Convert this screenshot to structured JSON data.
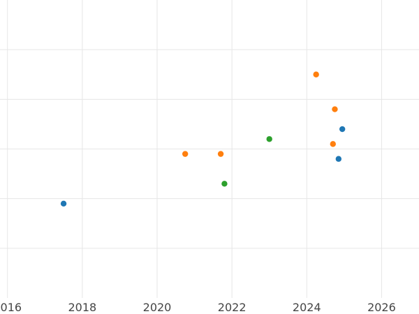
{
  "chart_data": {
    "type": "scatter",
    "title": "",
    "xlabel": "",
    "ylabel": "",
    "x_axis_kind": "year",
    "xlim": [
      2015.8,
      2027.0
    ],
    "ylim": [
      0,
      6
    ],
    "x_ticks": [
      2016,
      2018,
      2020,
      2022,
      2024,
      2026
    ],
    "x_tick_labels": [
      "2016",
      "2018",
      "2020",
      "2022",
      "2024",
      "2026"
    ],
    "y_gridlines": [
      1,
      2,
      3,
      4,
      5
    ],
    "grid": true,
    "legend": "none",
    "series": [
      {
        "color": "#1f77b4",
        "points": [
          {
            "x": 2017.5,
            "y": 1.9
          },
          {
            "x": 2024.85,
            "y": 2.8
          },
          {
            "x": 2024.95,
            "y": 3.4
          }
        ]
      },
      {
        "color": "#ff7f0e",
        "points": [
          {
            "x": 2020.75,
            "y": 2.9
          },
          {
            "x": 2021.7,
            "y": 2.9
          },
          {
            "x": 2024.25,
            "y": 4.5
          },
          {
            "x": 2024.75,
            "y": 3.8
          },
          {
            "x": 2024.7,
            "y": 3.1
          }
        ]
      },
      {
        "color": "#2ca02c",
        "points": [
          {
            "x": 2021.8,
            "y": 2.3
          },
          {
            "x": 2023.0,
            "y": 3.2
          }
        ]
      }
    ]
  }
}
